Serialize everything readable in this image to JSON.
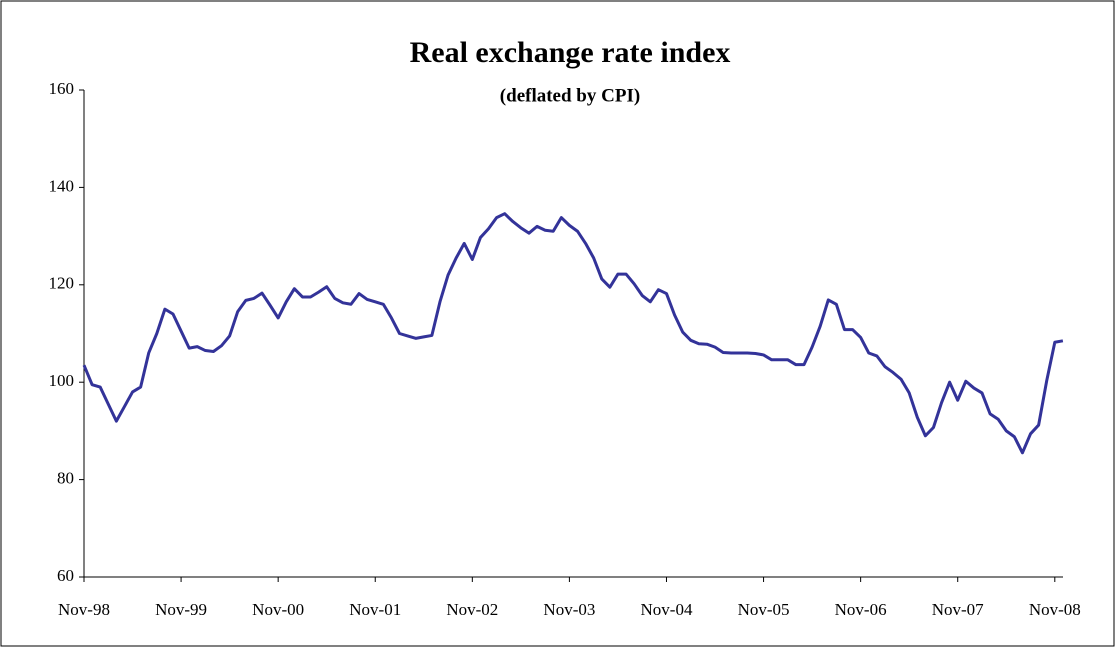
{
  "chart_data": {
    "type": "line",
    "title": "Real exchange rate index",
    "subtitle": "(deflated by CPI)",
    "x": [
      "Nov-98",
      null,
      null,
      null,
      null,
      null,
      null,
      null,
      null,
      null,
      null,
      null,
      "Nov-99",
      null,
      null,
      null,
      null,
      null,
      null,
      null,
      null,
      null,
      null,
      null,
      "Nov-00",
      null,
      null,
      null,
      null,
      null,
      null,
      null,
      null,
      null,
      null,
      null,
      "Nov-01",
      null,
      null,
      null,
      null,
      null,
      null,
      null,
      null,
      null,
      null,
      null,
      "Nov-02",
      null,
      null,
      null,
      null,
      null,
      null,
      null,
      null,
      null,
      null,
      null,
      "Nov-03",
      null,
      null,
      null,
      null,
      null,
      null,
      null,
      null,
      null,
      null,
      null,
      "Nov-04",
      null,
      null,
      null,
      null,
      null,
      null,
      null,
      null,
      null,
      null,
      null,
      "Nov-05",
      null,
      null,
      null,
      null,
      null,
      null,
      null,
      null,
      null,
      null,
      null,
      "Nov-06",
      null,
      null,
      null,
      null,
      null,
      null,
      null,
      null,
      null,
      null,
      null,
      "Nov-07",
      null,
      null,
      null,
      null,
      null,
      null,
      null,
      null,
      null,
      null,
      null,
      "Nov-08",
      null
    ],
    "values": [
      103.5,
      99.5,
      99,
      95.5,
      92,
      95,
      98,
      99,
      106,
      110,
      115,
      114,
      110.5,
      107,
      107.3,
      106.5,
      106.3,
      107.5,
      109.5,
      114.5,
      116.8,
      117.2,
      118.3,
      115.8,
      113.2,
      116.5,
      119.2,
      117.5,
      117.5,
      118.5,
      119.6,
      117.2,
      116.3,
      116,
      118.2,
      117,
      116.5,
      116,
      113.2,
      110,
      109.5,
      109,
      109.3,
      109.6,
      116.5,
      122,
      125.5,
      128.5,
      125.2,
      129.7,
      131.5,
      133.8,
      134.6,
      133,
      131.7,
      130.6,
      132,
      131.2,
      131,
      133.8,
      132.2,
      131,
      128.5,
      125.5,
      121.2,
      119.5,
      122.2,
      122.2,
      120.2,
      117.8,
      116.5,
      119,
      118.2,
      113.8,
      110.3,
      108.6,
      107.9,
      107.8,
      107.2,
      106.1,
      106,
      106,
      106,
      105.9,
      105.6,
      104.6,
      104.6,
      104.6,
      103.6,
      103.6,
      107.2,
      111.5,
      116.9,
      116,
      110.8,
      110.8,
      109.2,
      106,
      105.4,
      103.2,
      102,
      100.6,
      97.8,
      92.8,
      89,
      90.7,
      95.8,
      100,
      96.3,
      100.2,
      98.8,
      97.8,
      93.5,
      92.4,
      90,
      88.8,
      85.5,
      89.4,
      91.2,
      100.3,
      108.2,
      108.5
    ],
    "color": "#333399",
    "ylim": [
      60,
      160
    ],
    "yticks": [
      60,
      80,
      100,
      120,
      140,
      160
    ]
  }
}
